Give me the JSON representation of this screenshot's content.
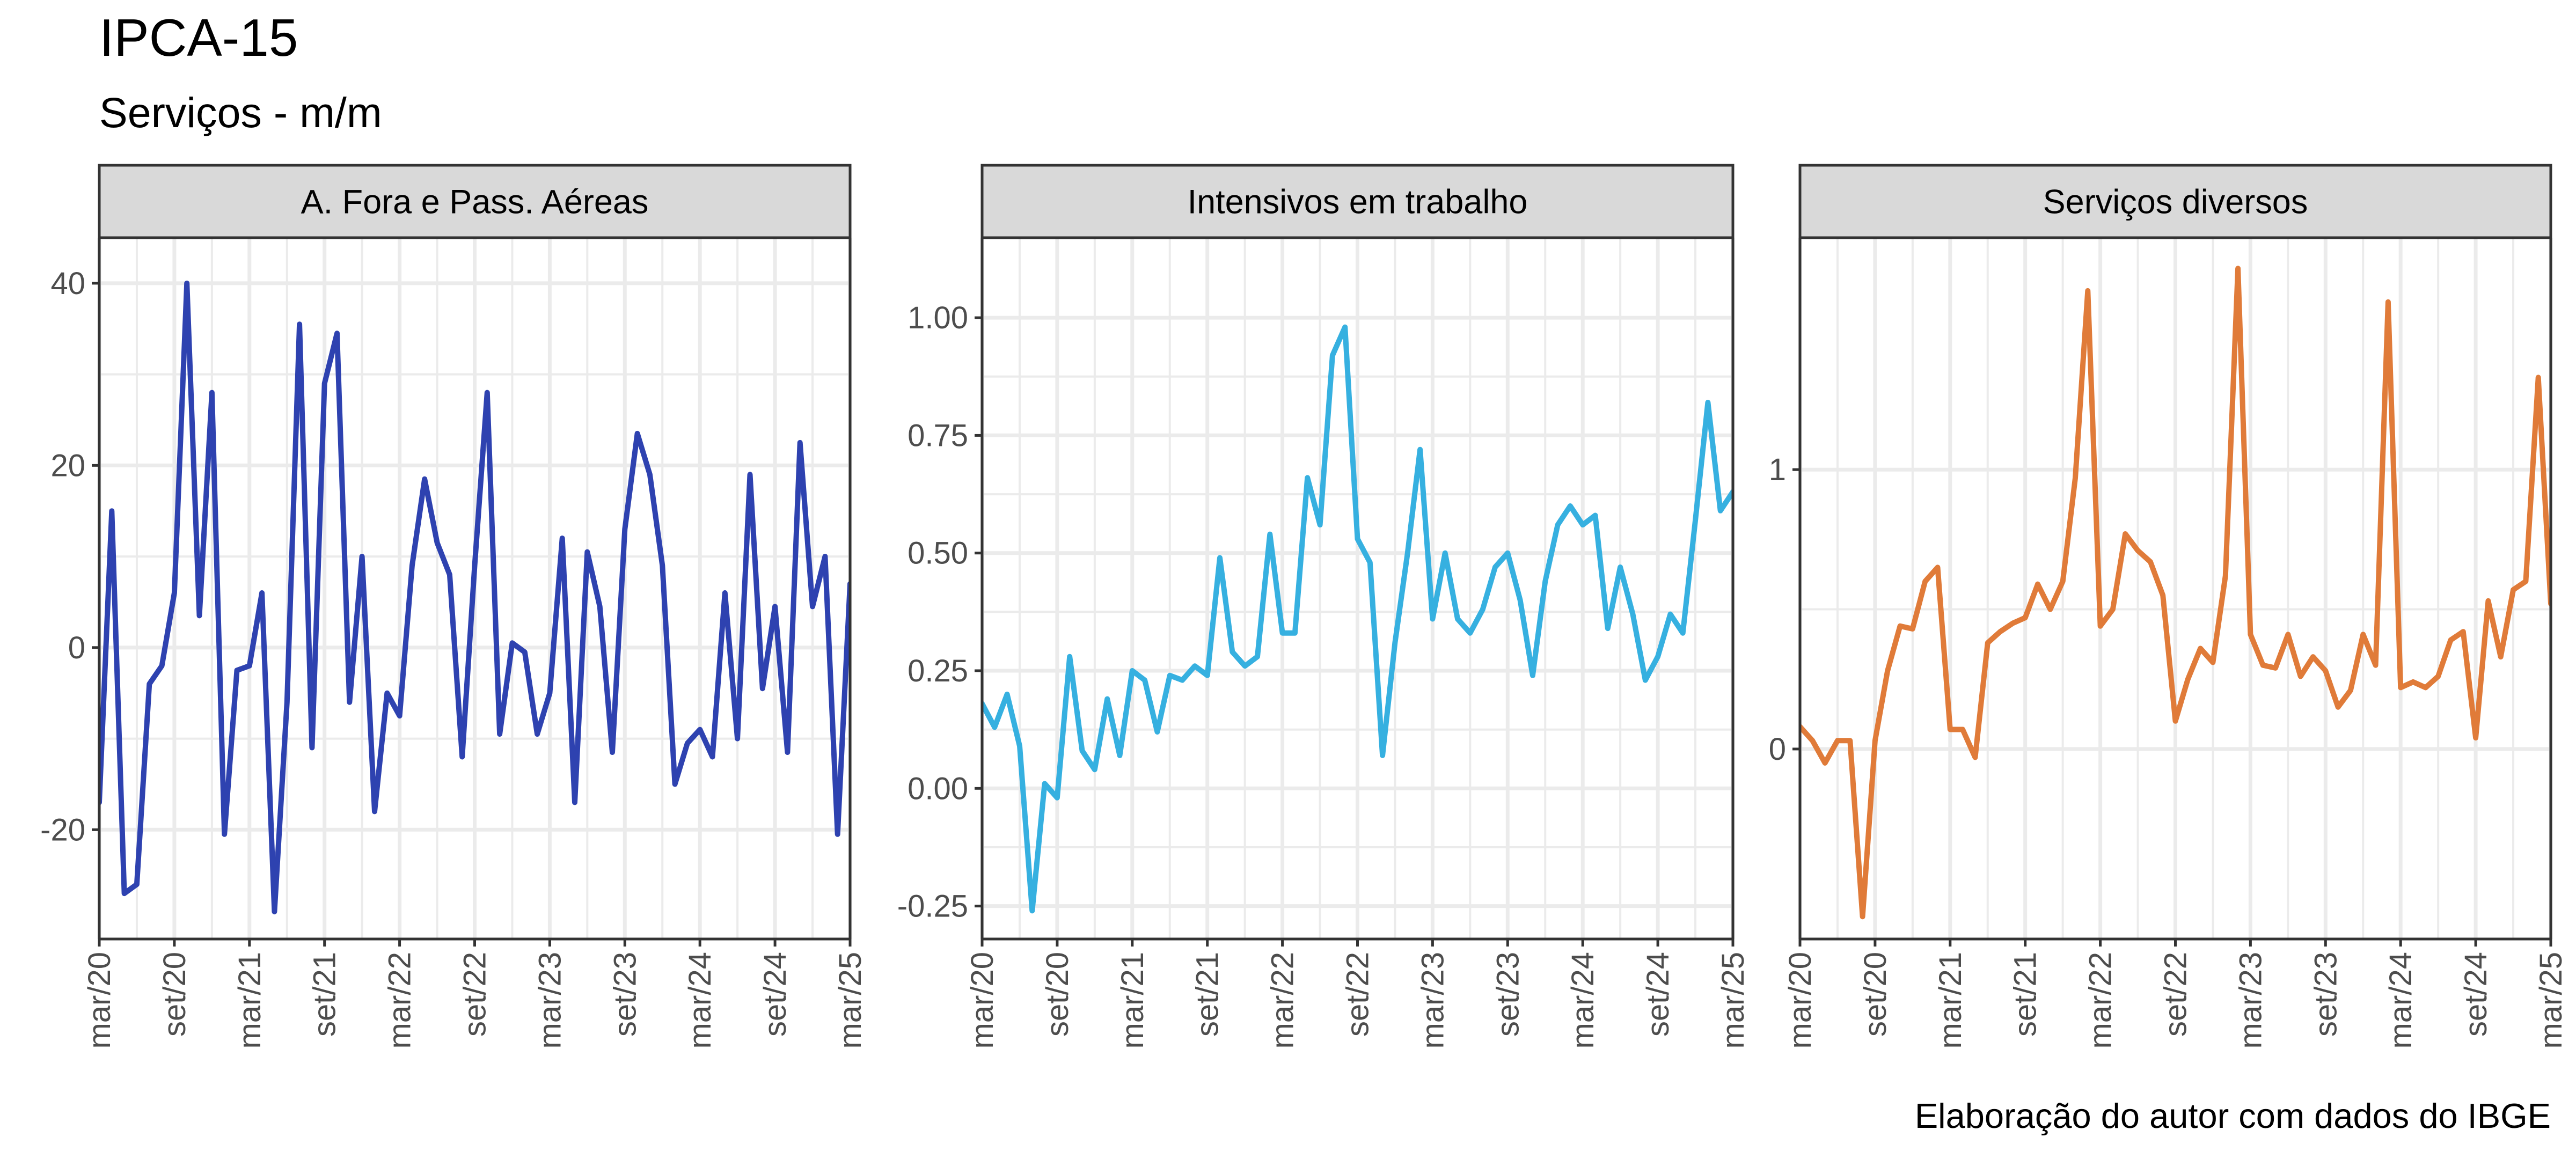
{
  "header": {
    "title": "IPCA-15",
    "subtitle": "Serviços - m/m",
    "caption": "Elaboração do autor com dados do IBGE"
  },
  "colors": {
    "panel_border": "#333333",
    "strip_fill": "#d9d9d9",
    "grid": "#ebebeb",
    "tick_text": "#4d4d4d"
  },
  "chart_data": [
    {
      "type": "line",
      "panel": "A. Fora e Pass. Aéreas",
      "color": "#2e42b0",
      "x_tick_labels": [
        "mar/20",
        "set/20",
        "mar/21",
        "set/21",
        "mar/22",
        "set/22",
        "mar/23",
        "set/23",
        "mar/24",
        "set/24",
        "mar/25"
      ],
      "x_range": [
        "2020-03",
        "2025-03"
      ],
      "ylim": [
        -32,
        45
      ],
      "y_ticks": [
        -20,
        0,
        20,
        40
      ],
      "y_tick_labels": [
        "-20",
        "0",
        "20",
        "40"
      ],
      "grid": true,
      "x": [
        "2020-03",
        "2020-04",
        "2020-05",
        "2020-06",
        "2020-07",
        "2020-08",
        "2020-09",
        "2020-10",
        "2020-11",
        "2020-12",
        "2021-01",
        "2021-02",
        "2021-03",
        "2021-04",
        "2021-05",
        "2021-06",
        "2021-07",
        "2021-08",
        "2021-09",
        "2021-10",
        "2021-11",
        "2021-12",
        "2022-01",
        "2022-02",
        "2022-03",
        "2022-04",
        "2022-05",
        "2022-06",
        "2022-07",
        "2022-08",
        "2022-09",
        "2022-10",
        "2022-11",
        "2022-12",
        "2023-01",
        "2023-02",
        "2023-03",
        "2023-04",
        "2023-05",
        "2023-06",
        "2023-07",
        "2023-08",
        "2023-09",
        "2023-10",
        "2023-11",
        "2023-12",
        "2024-01",
        "2024-02",
        "2024-03",
        "2024-04",
        "2024-05",
        "2024-06",
        "2024-07",
        "2024-08",
        "2024-09",
        "2024-10",
        "2024-11",
        "2024-12",
        "2025-01",
        "2025-02",
        "2025-03"
      ],
      "values": [
        -17,
        15,
        -27,
        -26,
        -4,
        -2,
        6,
        40,
        3.5,
        28,
        -20.5,
        -2.5,
        -2,
        6,
        -29,
        -6,
        35.5,
        -11,
        29,
        34.5,
        -6,
        10,
        -18,
        -5,
        -7.5,
        9,
        18.5,
        11.5,
        8,
        -12,
        9,
        28,
        -9.5,
        0.5,
        -0.5,
        -9.5,
        -5,
        12,
        -17,
        10.5,
        4.5,
        -11.5,
        13,
        23.5,
        19,
        9,
        -15,
        -10.5,
        -9,
        -12,
        6,
        -10,
        19,
        -4.5,
        4.5,
        -11.5,
        22.5,
        4.5,
        10,
        -20.5,
        7
      ]
    },
    {
      "type": "line",
      "panel": "Intensivos em trabalho",
      "color": "#36b0e0",
      "x_tick_labels": [
        "mar/20",
        "set/20",
        "mar/21",
        "set/21",
        "mar/22",
        "set/22",
        "mar/23",
        "set/23",
        "mar/24",
        "set/24",
        "mar/25"
      ],
      "x_range": [
        "2020-03",
        "2025-03"
      ],
      "ylim": [
        -0.32,
        1.17
      ],
      "y_ticks": [
        -0.25,
        0.0,
        0.25,
        0.5,
        0.75,
        1.0
      ],
      "y_tick_labels": [
        "-0.25",
        "0.00",
        "0.25",
        "0.50",
        "0.75",
        "1.00"
      ],
      "grid": true,
      "x": [
        "2020-03",
        "2020-04",
        "2020-05",
        "2020-06",
        "2020-07",
        "2020-08",
        "2020-09",
        "2020-10",
        "2020-11",
        "2020-12",
        "2021-01",
        "2021-02",
        "2021-03",
        "2021-04",
        "2021-05",
        "2021-06",
        "2021-07",
        "2021-08",
        "2021-09",
        "2021-10",
        "2021-11",
        "2021-12",
        "2022-01",
        "2022-02",
        "2022-03",
        "2022-04",
        "2022-05",
        "2022-06",
        "2022-07",
        "2022-08",
        "2022-09",
        "2022-10",
        "2022-11",
        "2022-12",
        "2023-01",
        "2023-02",
        "2023-03",
        "2023-04",
        "2023-05",
        "2023-06",
        "2023-07",
        "2023-08",
        "2023-09",
        "2023-10",
        "2023-11",
        "2023-12",
        "2024-01",
        "2024-02",
        "2024-03",
        "2024-04",
        "2024-05",
        "2024-06",
        "2024-07",
        "2024-08",
        "2024-09",
        "2024-10",
        "2024-11",
        "2024-12",
        "2025-01",
        "2025-02",
        "2025-03"
      ],
      "values": [
        0.18,
        0.13,
        0.2,
        0.09,
        -0.26,
        0.01,
        -0.02,
        0.28,
        0.08,
        0.04,
        0.19,
        0.07,
        0.25,
        0.23,
        0.12,
        0.24,
        0.23,
        0.26,
        0.24,
        0.49,
        0.29,
        0.26,
        0.28,
        0.54,
        0.33,
        0.33,
        0.66,
        0.56,
        0.92,
        0.98,
        0.53,
        0.48,
        0.07,
        0.31,
        0.5,
        0.72,
        0.36,
        0.5,
        0.36,
        0.33,
        0.38,
        0.47,
        0.5,
        0.4,
        0.24,
        0.44,
        0.56,
        0.6,
        0.56,
        0.58,
        0.34,
        0.47,
        0.37,
        0.23,
        0.28,
        0.37,
        0.33,
        0.57,
        0.82,
        0.59,
        0.63
      ]
    },
    {
      "type": "line",
      "panel": "Serviços diversos",
      "color": "#e07b39",
      "x_tick_labels": [
        "mar/20",
        "set/20",
        "mar/21",
        "set/21",
        "mar/22",
        "set/22",
        "mar/23",
        "set/23",
        "mar/24",
        "set/24",
        "mar/25"
      ],
      "x_range": [
        "2020-03",
        "2025-03"
      ],
      "ylim": [
        -0.68,
        1.83
      ],
      "y_ticks": [
        0,
        1
      ],
      "y_tick_labels": [
        "0",
        "1"
      ],
      "grid": true,
      "x": [
        "2020-03",
        "2020-04",
        "2020-05",
        "2020-06",
        "2020-07",
        "2020-08",
        "2020-09",
        "2020-10",
        "2020-11",
        "2020-12",
        "2021-01",
        "2021-02",
        "2021-03",
        "2021-04",
        "2021-05",
        "2021-06",
        "2021-07",
        "2021-08",
        "2021-09",
        "2021-10",
        "2021-11",
        "2021-12",
        "2022-01",
        "2022-02",
        "2022-03",
        "2022-04",
        "2022-05",
        "2022-06",
        "2022-07",
        "2022-08",
        "2022-09",
        "2022-10",
        "2022-11",
        "2022-12",
        "2023-01",
        "2023-02",
        "2023-03",
        "2023-04",
        "2023-05",
        "2023-06",
        "2023-07",
        "2023-08",
        "2023-09",
        "2023-10",
        "2023-11",
        "2023-12",
        "2024-01",
        "2024-02",
        "2024-03",
        "2024-04",
        "2024-05",
        "2024-06",
        "2024-07",
        "2024-08",
        "2024-09",
        "2024-10",
        "2024-11",
        "2024-12",
        "2025-01",
        "2025-02",
        "2025-03"
      ],
      "values": [
        0.08,
        0.03,
        -0.05,
        0.03,
        0.03,
        -0.6,
        0.03,
        0.28,
        0.44,
        0.43,
        0.6,
        0.65,
        0.07,
        0.07,
        -0.03,
        0.38,
        0.42,
        0.45,
        0.47,
        0.59,
        0.5,
        0.6,
        0.97,
        1.64,
        0.44,
        0.5,
        0.77,
        0.71,
        0.67,
        0.55,
        0.1,
        0.25,
        0.36,
        0.31,
        0.62,
        1.72,
        0.41,
        0.3,
        0.29,
        0.41,
        0.26,
        0.33,
        0.28,
        0.15,
        0.21,
        0.41,
        0.3,
        1.6,
        0.22,
        0.24,
        0.22,
        0.26,
        0.39,
        0.42,
        0.04,
        0.53,
        0.33,
        0.57,
        0.6,
        1.33,
        0.52
      ]
    }
  ]
}
